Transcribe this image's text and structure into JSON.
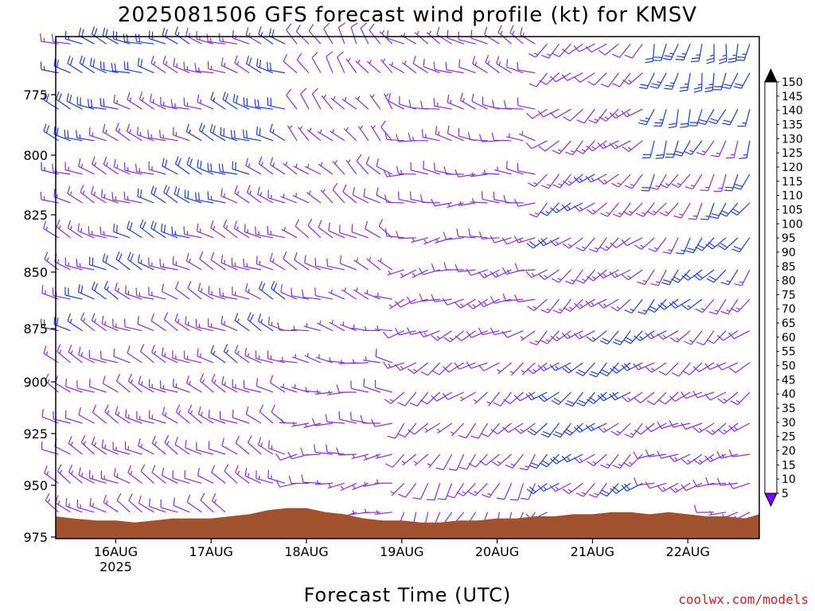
{
  "title": "2025081506 GFS forecast wind profile (kt) for KMSV",
  "xlabel": "Forecast Time (UTC)",
  "credit": "coolwx.com/models",
  "colors": {
    "terrain": "#a0522d",
    "barb_light": "#8a2be2",
    "barb_strong": "#1b3de0"
  },
  "chart_data": {
    "type": "wind-barb time-height section",
    "y_axis": {
      "label": "",
      "unit": "hPa",
      "inverted": true,
      "range": [
        750,
        975
      ],
      "ticks": [
        775,
        800,
        825,
        850,
        875,
        900,
        925,
        950,
        975
      ]
    },
    "x_axis": {
      "label": "Forecast Time (UTC)",
      "ticks": [
        {
          "label": "16AUG",
          "sub": "2025",
          "day": 1
        },
        {
          "label": "17AUG",
          "sub": "",
          "day": 2
        },
        {
          "label": "18AUG",
          "sub": "",
          "day": 3
        },
        {
          "label": "19AUG",
          "sub": "",
          "day": 4
        },
        {
          "label": "20AUG",
          "sub": "",
          "day": 5
        },
        {
          "label": "21AUG",
          "sub": "",
          "day": 6
        },
        {
          "label": "22AUG",
          "sub": "",
          "day": 7
        }
      ],
      "range_days": [
        0.37,
        7.75
      ]
    },
    "colorbar": {
      "unit": "kt",
      "levels": [
        5,
        10,
        15,
        20,
        25,
        30,
        35,
        40,
        45,
        50,
        55,
        60,
        65,
        70,
        75,
        80,
        85,
        90,
        95,
        100,
        105,
        110,
        115,
        120,
        125,
        130,
        135,
        140,
        145,
        150
      ],
      "colors": [
        "#7a00ff",
        "#6a1cff",
        "#2a00e0",
        "#1a2ae8",
        "#1a55f0",
        "#1a6cf5",
        "#1a88f5",
        "#12a8f0",
        "#12d0e0",
        "#10e8c0",
        "#18e898",
        "#20e060",
        "#38e038",
        "#58f038",
        "#90f030",
        "#d0f020",
        "#f8f800",
        "#f8e000",
        "#f8c000",
        "#f8a000",
        "#f88000",
        "#f86000",
        "#f83000",
        "#f80000",
        "#f80030",
        "#f80060",
        "#f80090",
        "#f800b8",
        "#f800e0",
        "#f800ff"
      ]
    },
    "pressure_levels": [
      754,
      766,
      781,
      794,
      808,
      820,
      835,
      849,
      862,
      876,
      891,
      905,
      920,
      935,
      949,
      963
    ],
    "terrain_profile_hpa": [
      [
        0.37,
        965
      ],
      [
        0.55,
        966
      ],
      [
        0.8,
        967
      ],
      [
        1.0,
        967
      ],
      [
        1.2,
        968
      ],
      [
        1.4,
        967
      ],
      [
        1.6,
        966
      ],
      [
        1.8,
        966
      ],
      [
        2.0,
        966
      ],
      [
        2.2,
        965
      ],
      [
        2.4,
        964
      ],
      [
        2.6,
        962
      ],
      [
        2.8,
        961
      ],
      [
        3.0,
        961
      ],
      [
        3.2,
        963
      ],
      [
        3.4,
        964
      ],
      [
        3.6,
        966
      ],
      [
        3.8,
        967
      ],
      [
        4.0,
        967
      ],
      [
        4.2,
        968
      ],
      [
        4.4,
        968
      ],
      [
        4.6,
        967
      ],
      [
        4.8,
        967
      ],
      [
        5.0,
        966
      ],
      [
        5.2,
        966
      ],
      [
        5.4,
        965
      ],
      [
        5.6,
        965
      ],
      [
        5.8,
        964
      ],
      [
        6.0,
        964
      ],
      [
        6.2,
        963
      ],
      [
        6.4,
        963
      ],
      [
        6.6,
        964
      ],
      [
        6.8,
        963
      ],
      [
        7.0,
        964
      ],
      [
        7.2,
        965
      ],
      [
        7.4,
        965
      ],
      [
        7.6,
        966
      ],
      [
        7.75,
        964
      ]
    ],
    "wind_regimes": [
      {
        "from_day": 0.37,
        "to_day": 2.9,
        "upper_dir_deg": 290,
        "upper_speed_kt": 18,
        "lower_dir_deg": 300,
        "lower_speed_kt": 12
      },
      {
        "from_day": 2.9,
        "to_day": 4.0,
        "upper_dir_deg": 330,
        "upper_speed_kt": 8,
        "lower_dir_deg": 250,
        "lower_speed_kt": 6
      },
      {
        "from_day": 4.0,
        "to_day": 5.5,
        "upper_dir_deg": 300,
        "upper_speed_kt": 10,
        "lower_dir_deg": 200,
        "lower_speed_kt": 10
      },
      {
        "from_day": 5.5,
        "to_day": 6.6,
        "upper_dir_deg": 230,
        "upper_speed_kt": 12,
        "lower_dir_deg": 230,
        "lower_speed_kt": 20
      },
      {
        "from_day": 6.6,
        "to_day": 7.75,
        "upper_dir_deg": 190,
        "upper_speed_kt": 22,
        "lower_dir_deg": 260,
        "lower_speed_kt": 8
      }
    ]
  }
}
